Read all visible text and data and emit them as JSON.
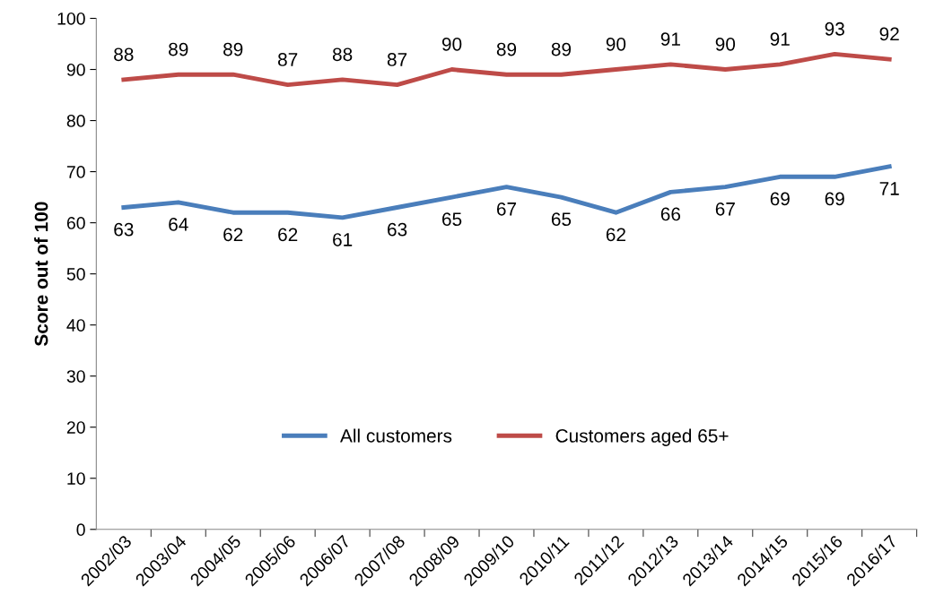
{
  "chart_data": {
    "type": "line",
    "ylabel": "Score out of 100",
    "categories": [
      "2002/03",
      "2003/04",
      "2004/05",
      "2005/06",
      "2006/07",
      "2007/08",
      "2008/09",
      "2009/10",
      "2010/11",
      "2011/12",
      "2012/13",
      "2013/14",
      "2014/15",
      "2015/16",
      "2016/17"
    ],
    "series": [
      {
        "name": "All customers",
        "color": "#4a7ebb",
        "values": [
          63,
          64,
          62,
          62,
          61,
          63,
          65,
          67,
          65,
          62,
          66,
          67,
          69,
          69,
          71
        ]
      },
      {
        "name": "Customers aged 65+",
        "color": "#be4b48",
        "values": [
          88,
          89,
          89,
          87,
          88,
          87,
          90,
          89,
          89,
          90,
          91,
          90,
          91,
          93,
          92
        ]
      }
    ],
    "ylim": [
      0,
      100
    ],
    "yticks": [
      0,
      10,
      20,
      30,
      40,
      50,
      60,
      70,
      80,
      90,
      100
    ],
    "data_labels": true,
    "grid": false,
    "legend": "bottom",
    "marker": "none",
    "line_style": "solid"
  }
}
